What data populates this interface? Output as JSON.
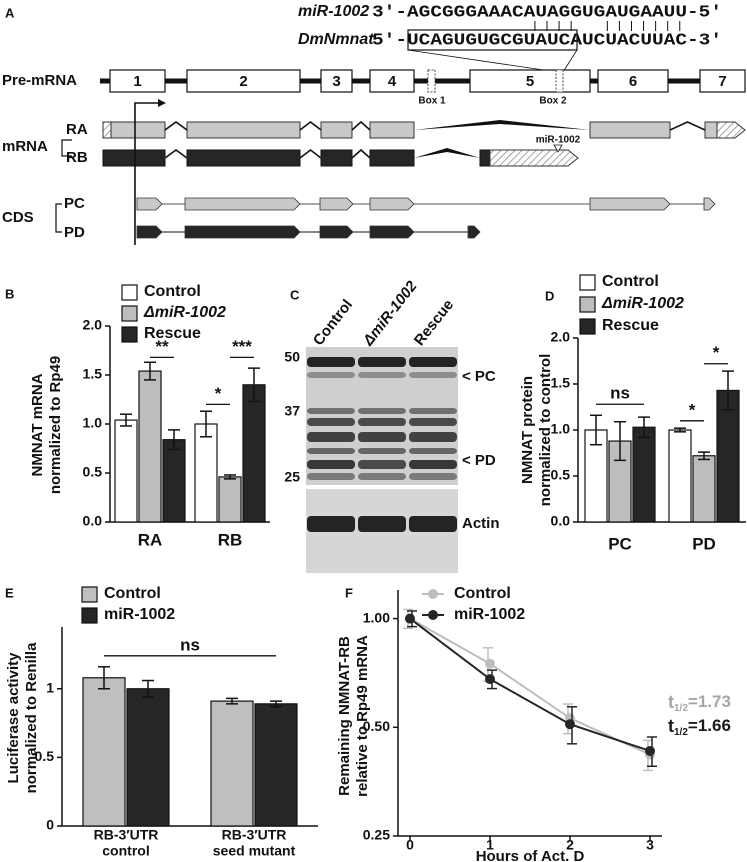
{
  "panel_a": {
    "label": "A",
    "mir_name": "miR-1002",
    "mir_seq": "3′-AGCGGGAAACAUAGGUGAUGAAUU-5′",
    "target_name": "DmNmnat",
    "target_seq": "5′-UCAGUGUGCGUAUCAUCUACUUAC-3′",
    "premrna_label": "Pre-mRNA",
    "exons": [
      "1",
      "2",
      "3",
      "4",
      "5",
      "6",
      "7"
    ],
    "boxes": [
      "Box 1",
      "Box 2"
    ],
    "mrna_label": "mRNA",
    "isoforms": [
      "RA",
      "RB"
    ],
    "mirna_site": "miR-1002",
    "cds_label": "CDS",
    "cds": [
      "PC",
      "PD"
    ]
  },
  "panel_c": {
    "label": "C",
    "lanes": [
      "Control",
      "ΔmiR-1002",
      "Rescue"
    ],
    "markers": [
      "50",
      "37",
      "25"
    ],
    "bands": [
      "< PC",
      "< PD"
    ],
    "loading": "Actin"
  },
  "chart_data": [
    {
      "panel": "B",
      "type": "bar",
      "categories": [
        "RA",
        "RB"
      ],
      "ylabel": [
        "NMNAT mRNA",
        "normalized to Rp49"
      ],
      "series": [
        {
          "name": "Control",
          "color": "#ffffff",
          "values": [
            1.04,
            1.0
          ],
          "errors": [
            0.06,
            0.13
          ]
        },
        {
          "name": "ΔmiR-1002",
          "color": "#bdbdbd",
          "values": [
            1.54,
            0.46
          ],
          "errors": [
            0.09,
            0.02
          ]
        },
        {
          "name": "Rescue",
          "color": "#262626",
          "values": [
            0.84,
            1.4
          ],
          "errors": [
            0.1,
            0.17
          ]
        }
      ],
      "ylim": [
        0,
        2
      ],
      "yticks": [
        {
          "value": 0,
          "label": "0.0"
        },
        0.5,
        {
          "value": 1,
          "label": "1.0"
        },
        1.5,
        {
          "value": 2,
          "label": "2.0"
        }
      ],
      "annotations": [
        "**",
        "*",
        "***"
      ]
    },
    {
      "panel": "D",
      "type": "bar",
      "categories": [
        "PC",
        "PD"
      ],
      "ylabel": [
        "NMNAT protein",
        "normalized to control"
      ],
      "series": [
        {
          "name": "Control",
          "color": "#ffffff",
          "values": [
            1.0,
            1.0
          ],
          "errors": [
            0.16,
            0.02
          ]
        },
        {
          "name": "ΔmiR-1002",
          "color": "#bdbdbd",
          "values": [
            0.88,
            0.72
          ],
          "errors": [
            0.21,
            0.04
          ]
        },
        {
          "name": "Rescue",
          "color": "#262626",
          "values": [
            1.03,
            1.43
          ],
          "errors": [
            0.11,
            0.21
          ]
        }
      ],
      "ylim": [
        0,
        2
      ],
      "yticks": [
        {
          "value": 0,
          "label": "0.0"
        },
        0.5,
        {
          "value": 1,
          "label": "1.0"
        },
        1.5,
        {
          "value": 2,
          "label": "2.0"
        }
      ],
      "annotations": [
        "ns",
        "*",
        "*"
      ]
    },
    {
      "panel": "E",
      "type": "bar",
      "categories": [
        [
          "RB-3′UTR",
          "control"
        ],
        [
          "RB-3′UTR",
          "seed mutant"
        ]
      ],
      "ylabel": [
        "Luciferase activity",
        "normalized to Renilla"
      ],
      "series": [
        {
          "name": "Control",
          "color": "#bfbfbf",
          "values": [
            1.08,
            0.91
          ],
          "errors": [
            0.08,
            0.02
          ]
        },
        {
          "name": "miR-1002",
          "color": "#262626",
          "values": [
            1.0,
            0.89
          ],
          "errors": [
            0.06,
            0.02
          ]
        }
      ],
      "ylim": [
        0,
        1.45
      ],
      "yticks": [
        0,
        0.5,
        1
      ],
      "annotations": [
        "ns"
      ]
    },
    {
      "panel": "F",
      "type": "line",
      "x": [
        0,
        1,
        2,
        3
      ],
      "xlim": [
        -0.15,
        3.15
      ],
      "xticks": [
        0,
        1,
        2,
        3
      ],
      "xlabel": "Hours of Act. D",
      "ylabel": [
        "Remaining NMNAT-RB",
        "relative to Rp49 mRNA"
      ],
      "yscale": "log",
      "ylim": [
        0.25,
        1.2
      ],
      "yticks": [
        0.25,
        {
          "value": 0.5,
          "label": "0.50"
        },
        {
          "value": 1,
          "label": "1.00"
        }
      ],
      "series": [
        {
          "name": "Control",
          "color": "#bdbdbd",
          "values": [
            1.0,
            0.75,
            0.53,
            0.42
          ],
          "errors": [
            0.06,
            0.08,
            0.05,
            0.04
          ]
        },
        {
          "name": "miR-1002",
          "color": "#262626",
          "values": [
            1.0,
            0.68,
            0.51,
            0.43
          ],
          "errors": [
            0.05,
            0.04,
            0.06,
            0.04
          ]
        }
      ],
      "annotations": [
        {
          "text": "t",
          "sub": "1/2",
          "rest": "=1.73",
          "color": "#a6a6a6"
        },
        {
          "text": "t",
          "sub": "1/2",
          "rest": "=1.66",
          "color": "#1a1a1a"
        }
      ]
    }
  ]
}
